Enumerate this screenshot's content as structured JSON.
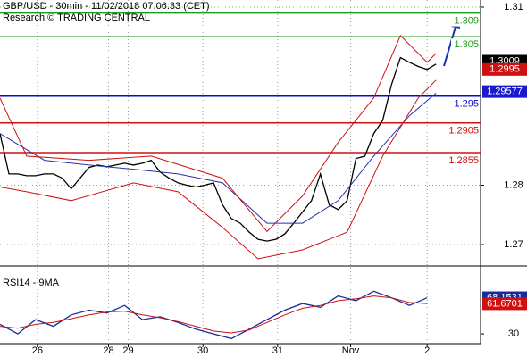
{
  "chart_data": [
    {
      "type": "line",
      "title": "GBP/USD - 30min - 11/02/2018 07:06:33 (CET)",
      "subtitle": "Research © TRADING CENTRAL",
      "xlim": [
        0,
        270
      ],
      "xticks": [
        {
          "value": 21,
          "label": "26"
        },
        {
          "value": 61,
          "label": "28"
        },
        {
          "value": 72,
          "label": "29"
        },
        {
          "value": 114,
          "label": "30"
        },
        {
          "value": 156,
          "label": "31"
        },
        {
          "value": 197,
          "label": "Nov"
        },
        {
          "value": 240,
          "label": "2"
        }
      ],
      "ylim": [
        1.2664,
        1.3112
      ],
      "yticks": [
        1.27,
        1.28,
        1.31
      ],
      "grid": true,
      "series": [
        {
          "color": "#000000",
          "x": [
            0,
            5,
            10,
            15,
            20,
            25,
            30,
            35,
            40,
            45,
            50,
            55,
            60,
            65,
            70,
            75,
            80,
            85,
            90,
            95,
            100,
            105,
            110,
            115,
            120,
            125,
            130,
            135,
            140,
            145,
            150,
            155,
            160,
            165,
            170,
            175,
            180,
            185,
            190,
            195,
            200,
            205,
            210,
            215,
            220,
            225,
            230,
            235,
            240,
            245
          ],
          "values": [
            1.2887,
            1.2819,
            1.2819,
            1.2816,
            1.2816,
            1.2819,
            1.2819,
            1.2812,
            1.2794,
            1.2812,
            1.283,
            1.2834,
            1.2831,
            1.2834,
            1.2837,
            1.2834,
            1.2837,
            1.2842,
            1.2822,
            1.2812,
            1.2804,
            1.28,
            1.2797,
            1.28,
            1.2804,
            1.2767,
            1.2744,
            1.2736,
            1.2721,
            1.2709,
            1.2706,
            1.2709,
            1.2718,
            1.2736,
            1.2755,
            1.2774,
            1.2819,
            1.2767,
            1.2759,
            1.2774,
            1.2845,
            1.2849,
            1.2887,
            1.2909,
            1.297,
            1.3015,
            1.3007,
            1.3,
            1.2995,
            1.3004
          ]
        },
        {
          "color": "#2233aa",
          "x": [
            0,
            25,
            50,
            75,
            100,
            125,
            150,
            170,
            190,
            210,
            230,
            245
          ],
          "values": [
            1.2887,
            1.2842,
            1.2834,
            1.2827,
            1.2819,
            1.2804,
            1.2736,
            1.2736,
            1.2774,
            1.2849,
            1.2917,
            1.2955
          ]
        },
        {
          "color": "#cc1111",
          "x": [
            0,
            15,
            50,
            85,
            125,
            150,
            170,
            190,
            210,
            225,
            240,
            245
          ],
          "values": [
            1.2947,
            1.2849,
            1.2842,
            1.2849,
            1.2812,
            1.2722,
            1.2782,
            1.2872,
            1.2947,
            1.3052,
            1.3007,
            1.3022
          ]
        },
        {
          "color": "#cc1111",
          "x": [
            0,
            15,
            40,
            75,
            100,
            125,
            145,
            170,
            195,
            215,
            235,
            245
          ],
          "values": [
            1.2797,
            1.2789,
            1.2774,
            1.2804,
            1.2789,
            1.2729,
            1.2676,
            1.2691,
            1.2721,
            1.2849,
            1.2947,
            1.2977
          ]
        }
      ],
      "levels": [
        {
          "value": 1.309,
          "color": "#1c9a1c"
        },
        {
          "value": 1.305,
          "color": "#1c9a1c"
        },
        {
          "value": 1.295,
          "color": "#0a0acc"
        },
        {
          "value": 1.2905,
          "color": "#d01010"
        },
        {
          "value": 1.2855,
          "color": "#d01010"
        }
      ],
      "price_markers": [
        {
          "value": 1.3009,
          "color": "#000000"
        },
        {
          "value": 1.2995,
          "color": "#d01010"
        },
        {
          "value": 1.29577,
          "color": "#1a1acc"
        }
      ]
    },
    {
      "type": "line",
      "title": "RSI14 - 9MA",
      "ylim": [
        15,
        95
      ],
      "yticks": [
        30
      ],
      "series": [
        {
          "color": "#1a2a9a",
          "x": [
            0,
            10,
            20,
            30,
            40,
            50,
            60,
            70,
            80,
            90,
            100,
            110,
            120,
            130,
            140,
            150,
            160,
            170,
            180,
            190,
            200,
            210,
            220,
            230,
            240
          ],
          "values": [
            40,
            30,
            45,
            38,
            50,
            55,
            52,
            60,
            45,
            48,
            42,
            35,
            30,
            25,
            35,
            45,
            55,
            62,
            58,
            70,
            65,
            75,
            68,
            60,
            68
          ]
        },
        {
          "color": "#cc1111",
          "x": [
            0,
            10,
            20,
            30,
            40,
            50,
            60,
            70,
            80,
            90,
            100,
            110,
            120,
            130,
            140,
            150,
            160,
            170,
            180,
            190,
            200,
            210,
            220,
            230,
            240
          ],
          "values": [
            38,
            36,
            40,
            42,
            46,
            50,
            53,
            54,
            50,
            47,
            43,
            38,
            33,
            31,
            34,
            42,
            50,
            57,
            60,
            65,
            67,
            70,
            68,
            63,
            62
          ]
        }
      ],
      "price_markers": [
        {
          "value": 68.1531,
          "color": "#1a2a9a"
        },
        {
          "value": 61.6701,
          "color": "#d01010"
        }
      ]
    }
  ]
}
